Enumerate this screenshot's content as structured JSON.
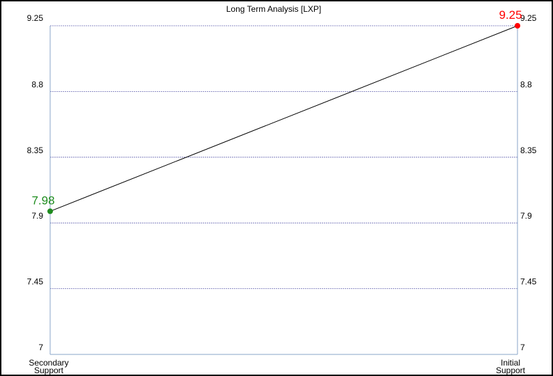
{
  "chart_data": {
    "type": "line",
    "title": "Long Term Analysis [LXP]",
    "xlabel": "",
    "ylabel": "",
    "categories": [
      [
        "Secondary",
        "Support"
      ],
      [
        "Initial",
        "Support"
      ]
    ],
    "series": [
      {
        "values": [
          7.98,
          9.25
        ],
        "point_colors": [
          "#1e8c1e",
          "#ff0000"
        ]
      }
    ],
    "data_labels": [
      "7.98",
      "9.25"
    ],
    "yticks": [
      "7",
      "7.45",
      "7.9",
      "8.35",
      "8.8",
      "9.25"
    ],
    "ylim": [
      7,
      9.25
    ],
    "grid": true,
    "legend": "none",
    "colors": {
      "line": "#000000",
      "grid": "#6a6ab4",
      "axis": "#8aa4c8",
      "low_point": "#1e8c1e",
      "high_point": "#ff0000"
    }
  }
}
